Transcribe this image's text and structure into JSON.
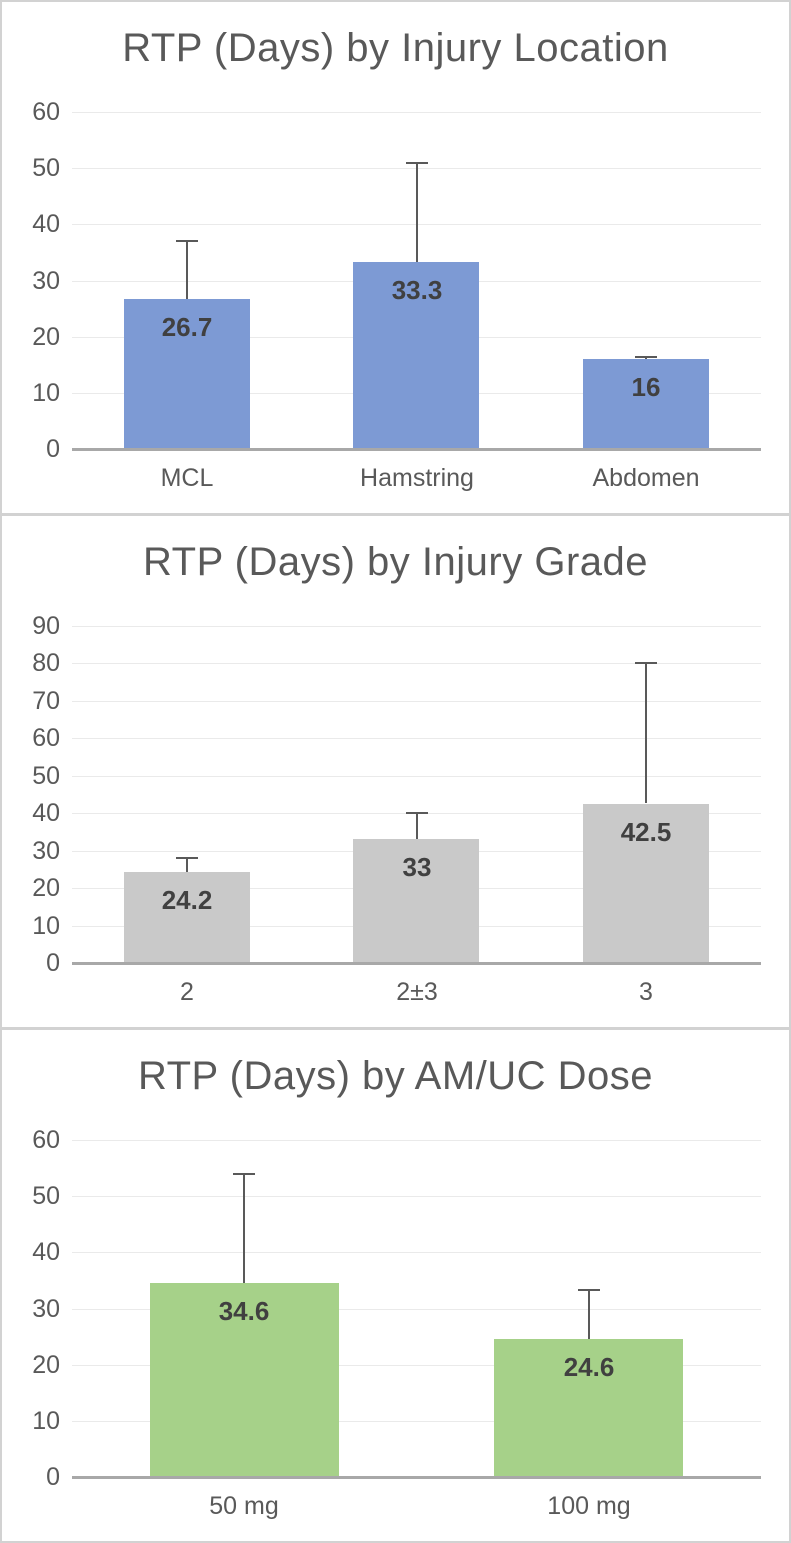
{
  "style": {
    "title_color": "#595959",
    "tick_label_color": "#595959",
    "data_label_color": "#404040",
    "gridline_color": "#eaeaea",
    "axis_line_color": "#a8a8a8",
    "error_bar_color": "#595959",
    "panel_border_color": "#d2d2d2",
    "background_color": "#ffffff"
  },
  "chart_data": [
    {
      "type": "bar",
      "title": "RTP (Days) by Injury Location",
      "categories": [
        "MCL",
        "Hamstring",
        "Abdomen"
      ],
      "values": [
        26.7,
        33.3,
        16
      ],
      "data_labels": [
        "26.7",
        "33.3",
        "16"
      ],
      "error_bar_tops": [
        37,
        51,
        16.4
      ],
      "bar_color": "#7d9ad4",
      "xlabel": "",
      "ylabel": "",
      "ylim": [
        0,
        60
      ],
      "yticks": [
        0,
        10,
        20,
        30,
        40,
        50,
        60
      ],
      "grid": "horizontal",
      "legend": "none"
    },
    {
      "type": "bar",
      "title": "RTP (Days) by Injury Grade",
      "categories": [
        "2",
        "2±3",
        "3"
      ],
      "values": [
        24.2,
        33,
        42.5
      ],
      "data_labels": [
        "24.2",
        "33",
        "42.5"
      ],
      "error_bar_tops": [
        28,
        40,
        80
      ],
      "bar_color": "#c9c9c9",
      "xlabel": "",
      "ylabel": "",
      "ylim": [
        0,
        90
      ],
      "yticks": [
        0,
        10,
        20,
        30,
        40,
        50,
        60,
        70,
        80,
        90
      ],
      "grid": "horizontal",
      "legend": "none"
    },
    {
      "type": "bar",
      "title": "RTP (Days) by AM/UC Dose",
      "categories": [
        "50 mg",
        "100 mg"
      ],
      "values": [
        34.6,
        24.6
      ],
      "data_labels": [
        "34.6",
        "24.6"
      ],
      "error_bar_tops": [
        54,
        33.3
      ],
      "bar_color": "#a6d189",
      "xlabel": "",
      "ylabel": "",
      "ylim": [
        0,
        60
      ],
      "yticks": [
        0,
        10,
        20,
        30,
        40,
        50,
        60
      ],
      "grid": "horizontal",
      "legend": "none"
    }
  ]
}
